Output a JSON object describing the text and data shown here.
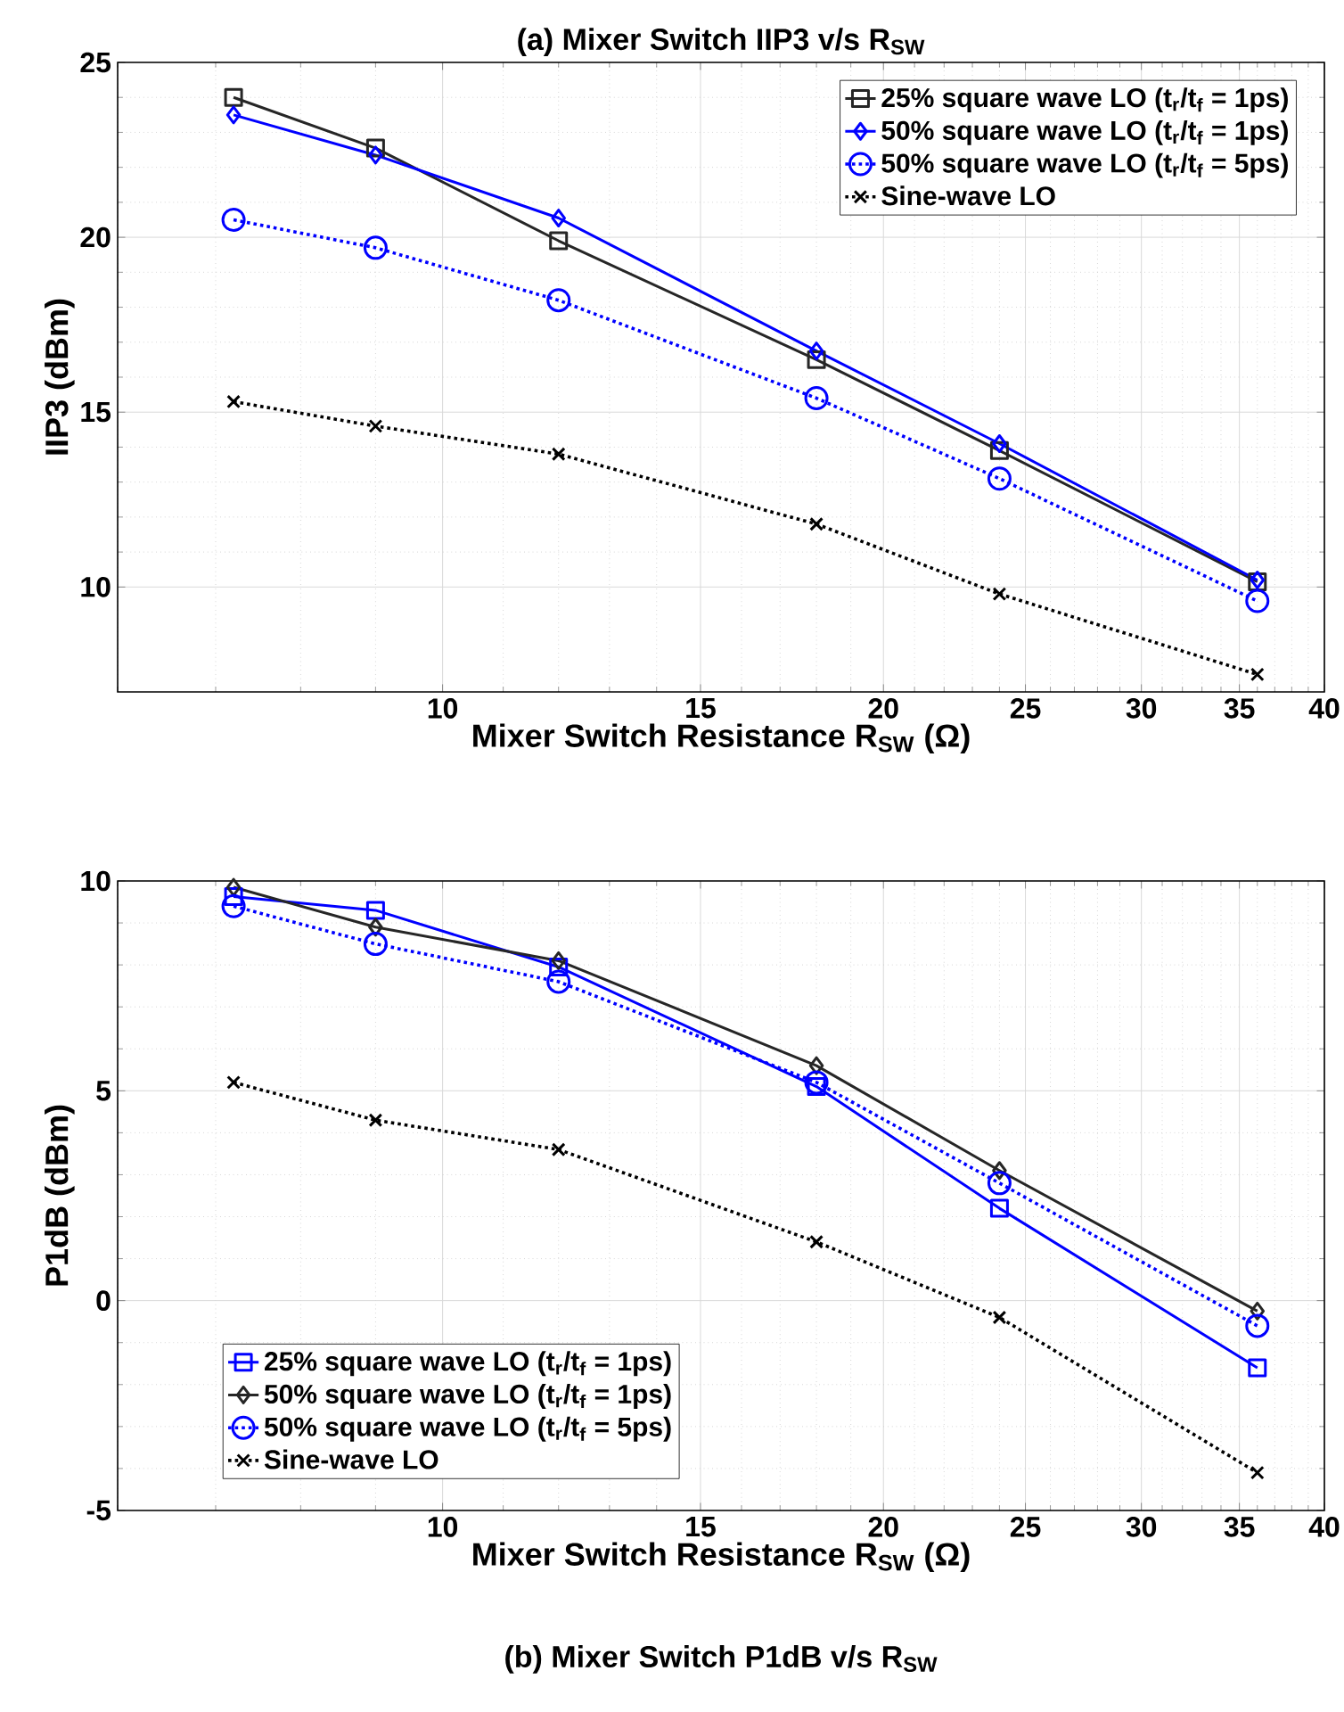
{
  "chart_data": [
    {
      "type": "line",
      "title": "(a) Mixer Switch IIP3 v/s R$_{SW}$",
      "xlabel": "Mixer Switch Resistance R$_{SW}$ (Ω)",
      "ylabel": "IIP3 (dBm)",
      "x": [
        7.2,
        9,
        12,
        18,
        24,
        36
      ],
      "series": [
        {
          "name": "25% square wave LO (t$_{r}$/t$_{f}$ = 1ps)",
          "color": "#262626",
          "marker": "square",
          "line_style": "solid",
          "values": [
            24.0,
            22.55,
            19.9,
            16.5,
            13.9,
            10.15
          ]
        },
        {
          "name": "50% square wave LO (t$_{r}$/t$_{f}$ = 1ps)",
          "color": "#0000ff",
          "marker": "diamond",
          "line_style": "solid",
          "values": [
            23.5,
            22.35,
            20.55,
            16.75,
            14.1,
            10.2
          ]
        },
        {
          "name": "50% square wave LO (t$_{r}$/t$_{f}$ = 5ps)",
          "color": "#0000ff",
          "marker": "circle",
          "line_style": "dotted",
          "values": [
            20.5,
            19.7,
            18.2,
            15.4,
            13.1,
            9.6
          ]
        },
        {
          "name": "Sine-wave LO",
          "color": "#000000",
          "marker": "cross",
          "line_style": "dotted",
          "values": [
            15.3,
            14.6,
            13.8,
            11.8,
            9.8,
            7.5
          ]
        }
      ],
      "xlim": [
        6,
        40
      ],
      "ylim": [
        7,
        25
      ],
      "xticks": [
        10,
        15,
        20,
        25,
        30,
        35,
        40
      ],
      "yticks": [
        10,
        15,
        20,
        25
      ],
      "log": "x",
      "grid": true,
      "legend": "top right"
    },
    {
      "type": "line",
      "title": "(b) Mixer Switch P1dB v/s R$_{SW}$",
      "xlabel": "Mixer Switch Resistance R$_{SW}$ (Ω)",
      "ylabel": "P1dB (dBm)",
      "x": [
        7.2,
        9,
        12,
        18,
        24,
        36
      ],
      "series": [
        {
          "name": "25% square wave LO (t$_{r}$/t$_{f}$ = 1ps)",
          "color": "#0000ff",
          "marker": "square",
          "line_style": "solid",
          "values": [
            9.63,
            9.3,
            7.95,
            5.1,
            2.2,
            -1.6
          ]
        },
        {
          "name": "50% square wave LO (t$_{r}$/t$_{f}$ = 1ps)",
          "color": "#262626",
          "marker": "diamond",
          "line_style": "solid",
          "values": [
            9.85,
            8.9,
            8.1,
            5.6,
            3.1,
            -0.25
          ]
        },
        {
          "name": "50% square wave LO (t$_{r}$/t$_{f}$ = 5ps)",
          "color": "#0000ff",
          "marker": "circle",
          "line_style": "dotted",
          "values": [
            9.4,
            8.5,
            7.6,
            5.2,
            2.8,
            -0.6
          ]
        },
        {
          "name": "Sine-wave LO",
          "color": "#000000",
          "marker": "cross",
          "line_style": "dotted",
          "values": [
            5.2,
            4.3,
            3.6,
            1.4,
            -0.4,
            -4.1
          ]
        }
      ],
      "xlim": [
        6,
        40
      ],
      "ylim": [
        -5,
        10
      ],
      "xticks": [
        10,
        15,
        20,
        25,
        30,
        35,
        40
      ],
      "yticks": [
        -5,
        0,
        5,
        10
      ],
      "log": "x",
      "grid": true,
      "legend": "bottom left"
    }
  ]
}
